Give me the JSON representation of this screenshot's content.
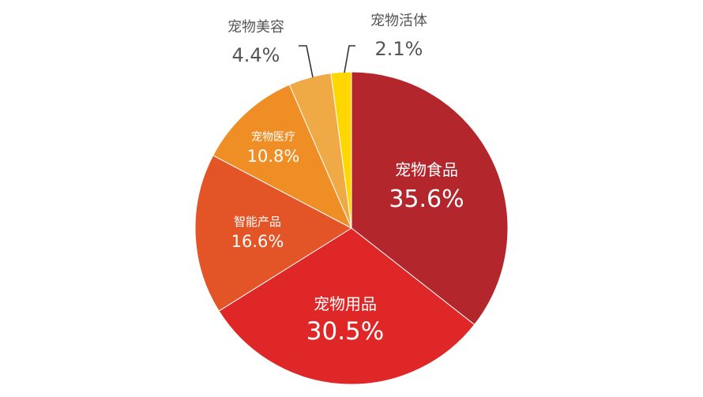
{
  "chart_data": {
    "type": "pie",
    "categories": [
      "宠物食品",
      "宠物用品",
      "智能产品",
      "宠物医疗",
      "宠物美容",
      "宠物活体"
    ],
    "values": [
      35.6,
      30.5,
      16.6,
      10.8,
      4.4,
      2.1
    ],
    "value_labels": [
      "35.6%",
      "30.5%",
      "16.6%",
      "10.8%",
      "4.4%",
      "2.1%"
    ],
    "colors": [
      "#b3262c",
      "#de2726",
      "#e35527",
      "#ee8e24",
      "#f0aa45",
      "#ffd700"
    ],
    "start": "12 o'clock",
    "direction": "clockwise",
    "legend": "none"
  }
}
